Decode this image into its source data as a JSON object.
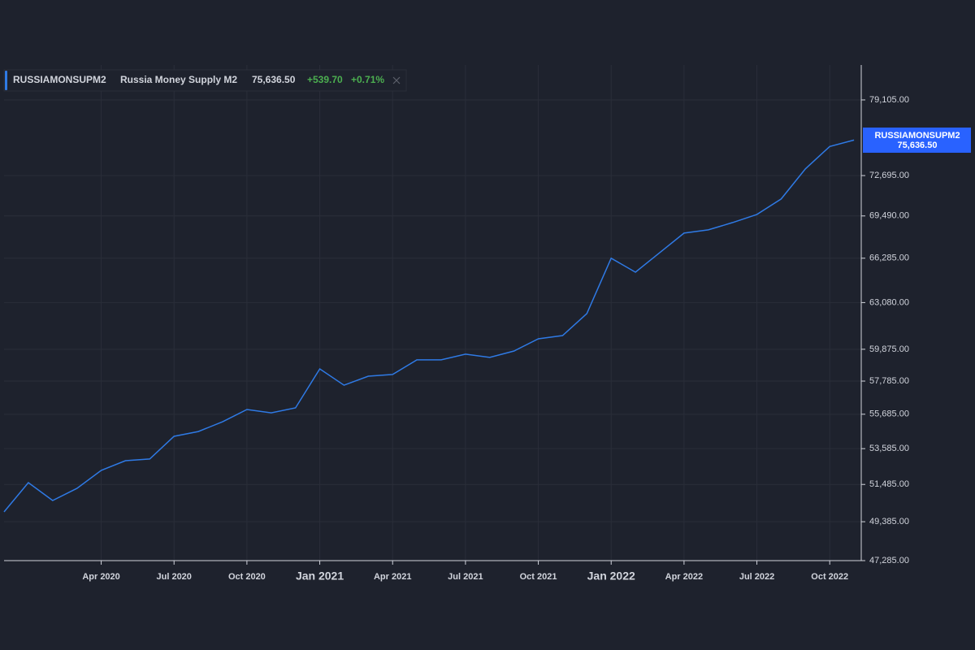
{
  "chart_data": {
    "type": "line",
    "symbol": "RUSSIAMONSUPM2",
    "title": "Russia Money Supply M2",
    "last_value_label": "75,636.50",
    "change_label": "+539.70",
    "change_percent_label": "+0.71%",
    "change_color": "#4caf50",
    "x": [
      "2019-12",
      "2020-01",
      "2020-02",
      "2020-03",
      "2020-04",
      "2020-05",
      "2020-06",
      "2020-07",
      "2020-08",
      "2020-09",
      "2020-10",
      "2020-11",
      "2020-12",
      "2021-01",
      "2021-02",
      "2021-03",
      "2021-04",
      "2021-05",
      "2021-06",
      "2021-07",
      "2021-08",
      "2021-09",
      "2021-10",
      "2021-11",
      "2021-12",
      "2022-01",
      "2022-02",
      "2022-03",
      "2022-04",
      "2022-05",
      "2022-06",
      "2022-07",
      "2022-08",
      "2022-09",
      "2022-10",
      "2022-11"
    ],
    "series": [
      {
        "name": "RUSSIAMONSUPM2",
        "color": "#2f7ae5",
        "values": [
          49930,
          51590,
          50570,
          51260,
          52300,
          52870,
          52970,
          54330,
          54620,
          55220,
          55980,
          55770,
          56080,
          58580,
          57520,
          58100,
          58210,
          59170,
          59170,
          59550,
          59330,
          59760,
          60580,
          60800,
          62310,
          66285,
          65260,
          66700,
          68170,
          68420,
          68980,
          69610,
          70820,
          73240,
          75096.8,
          75636.5
        ]
      }
    ],
    "xlim": [
      "2019-12",
      "2022-12"
    ],
    "xticks": [
      {
        "value": "2020-04",
        "label": "Apr 2020"
      },
      {
        "value": "2020-07",
        "label": "Jul 2020"
      },
      {
        "value": "2020-10",
        "label": "Oct 2020"
      },
      {
        "value": "2021-01",
        "label": "Jan 2021"
      },
      {
        "value": "2021-04",
        "label": "Apr 2021"
      },
      {
        "value": "2021-07",
        "label": "Jul 2021"
      },
      {
        "value": "2021-10",
        "label": "Oct 2021"
      },
      {
        "value": "2022-01",
        "label": "Jan 2022"
      },
      {
        "value": "2022-04",
        "label": "Apr 2022"
      },
      {
        "value": "2022-07",
        "label": "Jul 2022"
      },
      {
        "value": "2022-10",
        "label": "Oct 2022"
      }
    ],
    "ylim": [
      47285,
      82250
    ],
    "yticks": [
      {
        "value": 47285,
        "label": "47,285.00"
      },
      {
        "value": 49385,
        "label": "49,385.00"
      },
      {
        "value": 51485,
        "label": "51,485.00"
      },
      {
        "value": 53585,
        "label": "53,585.00"
      },
      {
        "value": 55685,
        "label": "55,685.00"
      },
      {
        "value": 57785,
        "label": "57,785.00"
      },
      {
        "value": 59875,
        "label": "59,875.00"
      },
      {
        "value": 63080,
        "label": "63,080.00"
      },
      {
        "value": 66285,
        "label": "66,285.00"
      },
      {
        "value": 69490,
        "label": "69,490.00"
      },
      {
        "value": 72695,
        "label": "72,695.00"
      },
      {
        "value": 79105,
        "label": "79,105.00"
      }
    ],
    "log_scale": true,
    "grid": true
  }
}
